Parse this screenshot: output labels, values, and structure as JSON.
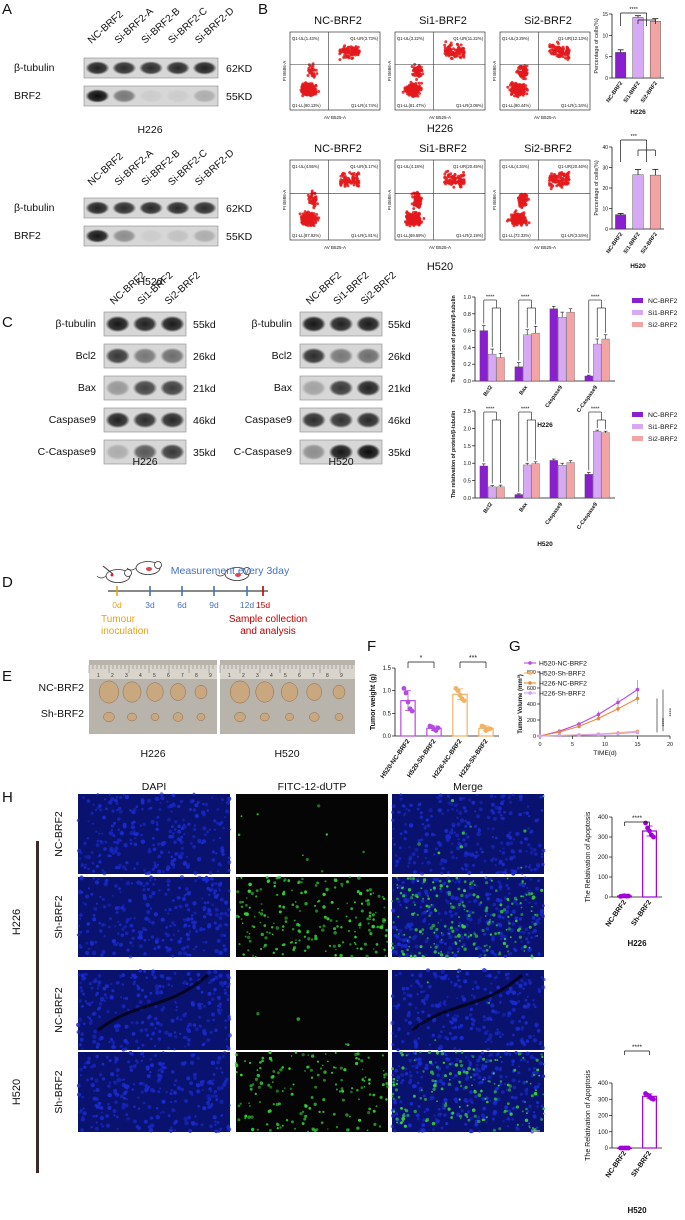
{
  "panels": {
    "A": {
      "letter": "A",
      "lanes": [
        "NC-BRF2",
        "Si-BRF2-A",
        "Si-BRF2-B",
        "Si-BRF2-C",
        "Si-BRF2-D"
      ],
      "blots": [
        {
          "cell_line": "H226",
          "rows": [
            {
              "label": "β-tubulin",
              "size": "62KD",
              "intensities": [
                0.85,
                0.8,
                0.8,
                0.82,
                0.85
              ]
            },
            {
              "label": "BRF2",
              "size": "55KD",
              "intensities": [
                0.95,
                0.45,
                0.05,
                0.05,
                0.2
              ]
            }
          ]
        },
        {
          "cell_line": "H520",
          "rows": [
            {
              "label": "β-tubulin",
              "size": "62KD",
              "intensities": [
                0.85,
                0.8,
                0.82,
                0.82,
                0.8
              ]
            },
            {
              "label": "BRF2",
              "size": "55KD",
              "intensities": [
                0.9,
                0.35,
                0.05,
                0.1,
                0.2
              ]
            }
          ]
        }
      ]
    },
    "B": {
      "letter": "B",
      "groups": [
        "NC-BRF2",
        "Si1-BRF2",
        "Si2-BRF2"
      ],
      "cell_lines": [
        "H226",
        "H520"
      ],
      "axis_x": "AV B525-A",
      "axis_y": "PI B686-A",
      "quadrants": [
        [
          [
            "Q1-UL(1.43%)",
            "Q1-UR(3.73%)",
            "Q1-LL(90.13%)",
            "Q1-LR(4.74%)"
          ],
          [
            "Q1-UL(3.22%)",
            "Q1-UR(11.22%)",
            "Q1-LL(81.47%)",
            "Q1-LR(3.09%)"
          ],
          [
            "Q1-UL(3.29%)",
            "Q1-UR(12.13%)",
            "Q1-LL(80.44%)",
            "Q1-LR(1.34%)"
          ]
        ],
        [
          [
            "Q1-UL(4.55%)",
            "Q1-UR(5.17%)",
            "Q1-LL(87.92%)",
            "Q1-LR(1.81%)"
          ],
          [
            "Q1-UL(4.18%)",
            "Q1-UR(20.45%)",
            "Q1-LL(69.59%)",
            "Q1-LR(2.19%)"
          ],
          [
            "Q1-UL(4.34%)",
            "Q1-UR(20.46%)",
            "Q1-LL(72.33%)",
            "Q1-LR(3.34%)"
          ]
        ]
      ]
    },
    "C": {
      "letter": "C",
      "lanes": [
        "NC-BRF2",
        "Si1-BRF2",
        "Si2-BRF2"
      ],
      "rows": [
        {
          "label": "β-tubulin",
          "size": "55kd"
        },
        {
          "label": "Bcl2",
          "size": "26kd"
        },
        {
          "label": "Bax",
          "size": "21kd"
        },
        {
          "label": "Caspase9",
          "size": "46kd"
        },
        {
          "label": "C-Caspase9",
          "size": "35kd"
        }
      ],
      "intensities": {
        "H226": [
          [
            0.9,
            0.85,
            0.88
          ],
          [
            0.75,
            0.45,
            0.5
          ],
          [
            0.3,
            0.7,
            0.72
          ],
          [
            0.85,
            0.8,
            0.82
          ],
          [
            0.2,
            0.6,
            0.75
          ]
        ],
        "H520": [
          [
            0.9,
            0.85,
            0.88
          ],
          [
            0.8,
            0.45,
            0.5
          ],
          [
            0.25,
            0.75,
            0.85
          ],
          [
            0.8,
            0.78,
            0.82
          ],
          [
            0.35,
            0.9,
            0.95
          ]
        ]
      },
      "cell_lines": [
        "H226",
        "H520"
      ]
    },
    "D": {
      "letter": "D",
      "header": "Measurement every 3day",
      "days": [
        "0d",
        "3d",
        "6d",
        "9d",
        "12d",
        "15d"
      ],
      "start_label": [
        "Tumour",
        "inoculation"
      ],
      "end_label": [
        "Sample collection",
        "and analysis"
      ]
    },
    "E": {
      "letter": "E",
      "row_labels": [
        "NC-BRF2",
        "Sh-BRF2"
      ],
      "cell_lines": [
        "H226",
        "H520"
      ]
    },
    "F": {
      "letter": "F"
    },
    "G": {
      "letter": "G"
    },
    "H": {
      "letter": "H",
      "columns": [
        "DAPI",
        "FITC-12-dUTP",
        "Merge"
      ],
      "groups": [
        {
          "cell_line": "H226",
          "rows": [
            "NC-BRF2",
            "Sh-BRF2"
          ]
        },
        {
          "cell_line": "H520",
          "rows": [
            "NC-BRF2",
            "Sh-BRF2"
          ]
        }
      ],
      "scale_text": "50μm"
    }
  },
  "colors": {
    "nc": "#8A1FCF",
    "si1": "#D7A8F3",
    "si2": "#F2A3A3",
    "f_purple": "#B54BE0",
    "f_orange": "#F0B264",
    "g_h520_nc": "#B74AE6",
    "g_h520_sh": "#F6B06E",
    "g_h226_nc": "#E8893A",
    "g_h226_sh": "#D8A0F0",
    "h_bar": "#A200D9",
    "blot_bg": "#d7d7d7",
    "dapi": "#1a2bd0",
    "fitc": "#36d03a",
    "timeline_start": "#E8A317",
    "timeline_end": "#C00000",
    "timeline_days": "#4472C4"
  },
  "chart_data": [
    {
      "id": "B-H226",
      "type": "bar",
      "categories": [
        "NC-BRF2",
        "Si1-BRF2",
        "Si2-BRF2"
      ],
      "values": [
        6,
        14.2,
        13.3
      ],
      "errors": [
        0.6,
        0.4,
        0.6
      ],
      "ylabel": "Percentage of cells(%)",
      "xlabel": "H226",
      "ylim": [
        0,
        15
      ],
      "yticks": [
        0,
        5,
        10,
        15
      ],
      "sig": [
        "****"
      ]
    },
    {
      "id": "B-H520",
      "type": "bar",
      "categories": [
        "NC-BRF2",
        "Si1-BRF2",
        "Si2-BRF2"
      ],
      "values": [
        7,
        26.5,
        26.3
      ],
      "errors": [
        0.6,
        2.5,
        2.8
      ],
      "ylabel": "Percentage of cells(%)",
      "xlabel": "H520",
      "ylim": [
        0,
        40
      ],
      "yticks": [
        0,
        10,
        20,
        30,
        40
      ],
      "sig": [
        "***"
      ]
    },
    {
      "id": "C-H226",
      "type": "bar",
      "categories": [
        "Bcl2",
        "Bax",
        "Caspase9",
        "C-Caspase9"
      ],
      "series": [
        {
          "name": "NC-BRF2",
          "values": [
            0.6,
            0.17,
            0.86,
            0.06
          ],
          "errors": [
            0.06,
            0.05,
            0.03,
            0.01
          ]
        },
        {
          "name": "Si1-BRF2",
          "values": [
            0.32,
            0.55,
            0.76,
            0.44
          ],
          "errors": [
            0.06,
            0.06,
            0.06,
            0.06
          ]
        },
        {
          "name": "Si2-BRF2",
          "values": [
            0.28,
            0.57,
            0.82,
            0.5
          ],
          "errors": [
            0.05,
            0.08,
            0.04,
            0.05
          ]
        }
      ],
      "ylabel": "The relativation of protein/β-tubulin",
      "xlabel": "H226",
      "ylim": [
        0,
        1.0
      ],
      "yticks": [
        "0.0",
        "0.2",
        "0.4",
        "0.6",
        "0.8",
        "1.0"
      ],
      "sig": [
        "****",
        "****",
        "****"
      ]
    },
    {
      "id": "C-H520",
      "type": "bar",
      "categories": [
        "Bcl2",
        "Bax",
        "Caspase9",
        "C-Caspase9"
      ],
      "series": [
        {
          "name": "NC-BRF2",
          "values": [
            0.92,
            0.1,
            1.08,
            0.68
          ],
          "errors": [
            0.06,
            0.02,
            0.04,
            0.06
          ]
        },
        {
          "name": "Si1-BRF2",
          "values": [
            0.32,
            0.95,
            0.94,
            1.92
          ],
          "errors": [
            0.04,
            0.05,
            0.06,
            0.03
          ]
        },
        {
          "name": "Si2-BRF2",
          "values": [
            0.32,
            0.99,
            1.02,
            1.88
          ],
          "errors": [
            0.05,
            0.05,
            0.05,
            0.04
          ]
        }
      ],
      "ylabel": "The relativation of protein/β-tubulin",
      "xlabel": "H520",
      "ylim": [
        0,
        2.5
      ],
      "yticks": [
        "0.0",
        "0.5",
        "1.0",
        "1.5",
        "2.0",
        "2.5"
      ],
      "sig": [
        "****",
        "****",
        "****"
      ]
    },
    {
      "id": "F",
      "type": "bar",
      "categories": [
        "H520-NC-BRF2",
        "H520-Sh-BRF2",
        "H226-NC-BRF2",
        "H226-Sh-BRF2"
      ],
      "values": [
        0.78,
        0.17,
        0.92,
        0.17
      ],
      "errors": [
        0.22,
        0.05,
        0.12,
        0.05
      ],
      "points": [
        [
          1.05,
          0.95,
          0.75,
          0.6,
          0.55
        ],
        [
          0.22,
          0.2,
          0.15,
          0.12,
          0.18
        ],
        [
          1.05,
          1.0,
          0.9,
          0.82,
          0.78
        ],
        [
          0.22,
          0.2,
          0.12,
          0.15,
          0.16
        ]
      ],
      "ylabel": "Tumor weight (g)",
      "ylim": [
        0,
        1.5
      ],
      "yticks": [
        "0.0",
        "0.5",
        "1.0",
        "1.5"
      ],
      "sig": [
        "*",
        "***"
      ]
    },
    {
      "id": "G",
      "type": "line",
      "x": [
        0,
        3,
        6,
        9,
        12,
        15
      ],
      "series": [
        {
          "name": "H520-NC-BRF2",
          "values": [
            0,
            60,
            150,
            270,
            420,
            580
          ],
          "errors": [
            0,
            12,
            25,
            40,
            60,
            120
          ]
        },
        {
          "name": "H520-Sh-BRF2",
          "values": [
            0,
            8,
            15,
            25,
            40,
            60
          ],
          "errors": [
            0,
            3,
            5,
            6,
            8,
            10
          ]
        },
        {
          "name": "H226-NC-BRF2",
          "values": [
            0,
            50,
            120,
            220,
            340,
            470
          ],
          "errors": [
            0,
            10,
            20,
            30,
            45,
            70
          ]
        },
        {
          "name": "H226-Sh-BRF2",
          "values": [
            0,
            6,
            12,
            20,
            30,
            45
          ],
          "errors": [
            0,
            2,
            4,
            5,
            6,
            8
          ]
        }
      ],
      "xlabel": "TIME(d)",
      "ylabel": "Tumor Volume (mm³)",
      "xlim": [
        0,
        20
      ],
      "xticks": [
        "0",
        "5",
        "10",
        "15",
        "20"
      ],
      "ylim": [
        0,
        800
      ],
      "yticks": [
        "0",
        "200",
        "400",
        "600",
        "800"
      ],
      "sig": [
        "****",
        "****"
      ]
    },
    {
      "id": "H-H226",
      "type": "bar",
      "categories": [
        "NC-BRF2",
        "Sh-BRF2"
      ],
      "values": [
        5,
        330
      ],
      "errors": [
        2,
        25
      ],
      "points": [
        [
          3,
          5,
          6,
          4,
          5
        ],
        [
          370,
          345,
          330,
          310,
          300
        ]
      ],
      "ylabel": "The Relativation of Apoptosis",
      "xlabel": "H226",
      "ylim": [
        0,
        400
      ],
      "yticks": [
        "0",
        "100",
        "200",
        "300",
        "400"
      ],
      "sig": [
        "****"
      ]
    },
    {
      "id": "H-H520",
      "type": "bar",
      "categories": [
        "NC-BRF2",
        "Sh-BRF2"
      ],
      "values": [
        0,
        318
      ],
      "errors": [
        0,
        15
      ],
      "points": [
        [
          0,
          0,
          0,
          0,
          0
        ],
        [
          335,
          325,
          318,
          305,
          300
        ]
      ],
      "ylabel": "The Relativation of Apoptosis",
      "xlabel": "H520",
      "ylim": [
        0,
        400
      ],
      "yticks": [
        "0",
        "100",
        "200",
        "300",
        "400"
      ],
      "sig": [
        "****"
      ]
    }
  ]
}
